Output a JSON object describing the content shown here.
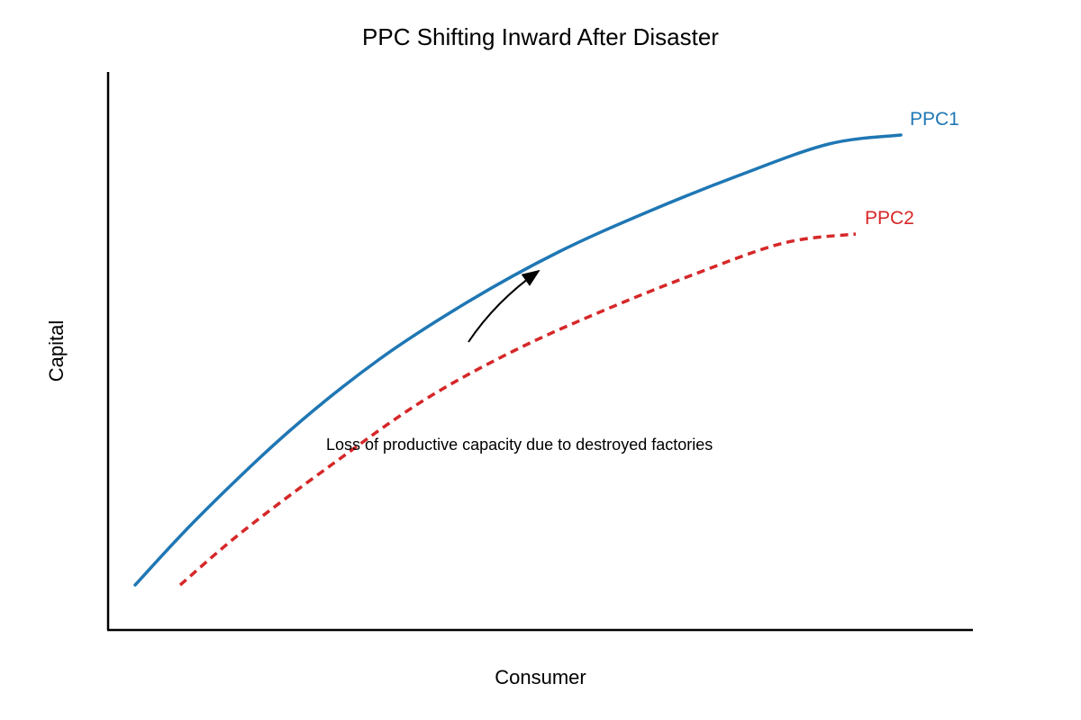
{
  "chart_data": {
    "type": "line",
    "title": "PPC Shifting Inward After Disaster",
    "xlabel": "Consumer",
    "ylabel": "Capital",
    "grid": false,
    "legend": "none",
    "series": [
      {
        "name": "PPC1",
        "color": "#1f77b4",
        "style": "solid",
        "x": [
          0.3,
          1.0,
          2.0,
          3.0,
          4.0,
          5.0,
          6.0,
          7.0,
          8.0,
          8.8
        ],
        "y": [
          0.5,
          1.25,
          2.2,
          3.0,
          3.65,
          4.2,
          4.65,
          5.05,
          5.4,
          5.5
        ]
      },
      {
        "name": "PPC2",
        "color": "#d62728",
        "style": "dashed",
        "x": [
          0.8,
          1.5,
          2.5,
          3.5,
          4.5,
          5.5,
          6.5,
          7.5,
          8.3
        ],
        "y": [
          0.5,
          1.1,
          1.85,
          2.55,
          3.1,
          3.55,
          3.95,
          4.3,
          4.4
        ]
      }
    ],
    "annotations": [
      {
        "text": "Loss of productive capacity due to destroyed factories"
      }
    ],
    "arrow": {
      "from": [
        4.0,
        3.2
      ],
      "to": [
        4.8,
        4.0
      ]
    }
  }
}
